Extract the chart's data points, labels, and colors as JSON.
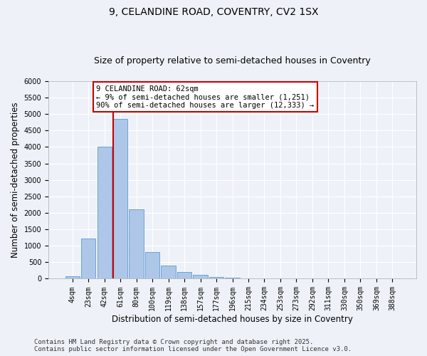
{
  "title_line1": "9, CELANDINE ROAD, COVENTRY, CV2 1SX",
  "title_line2": "Size of property relative to semi-detached houses in Coventry",
  "xlabel": "Distribution of semi-detached houses by size in Coventry",
  "ylabel": "Number of semi-detached properties",
  "categories": [
    "4sqm",
    "23sqm",
    "42sqm",
    "61sqm",
    "80sqm",
    "100sqm",
    "119sqm",
    "138sqm",
    "157sqm",
    "177sqm",
    "196sqm",
    "215sqm",
    "234sqm",
    "253sqm",
    "273sqm",
    "292sqm",
    "311sqm",
    "330sqm",
    "350sqm",
    "369sqm",
    "388sqm"
  ],
  "values": [
    75,
    1220,
    4020,
    4850,
    2100,
    800,
    390,
    195,
    110,
    55,
    30,
    10,
    5,
    0,
    0,
    0,
    0,
    0,
    0,
    0,
    0
  ],
  "bar_color": "#aec6e8",
  "bar_edge_color": "#5b9bd5",
  "highlight_bar_index": 3,
  "highlight_line_color": "#cc0000",
  "annotation_text": "9 CELANDINE ROAD: 62sqm\n← 9% of semi-detached houses are smaller (1,251)\n90% of semi-detached houses are larger (12,333) →",
  "annotation_box_color": "#cc0000",
  "ylim": [
    0,
    6000
  ],
  "yticks": [
    0,
    500,
    1000,
    1500,
    2000,
    2500,
    3000,
    3500,
    4000,
    4500,
    5000,
    5500,
    6000
  ],
  "footnote": "Contains HM Land Registry data © Crown copyright and database right 2025.\nContains public sector information licensed under the Open Government Licence v3.0.",
  "bg_color": "#eef2f8",
  "grid_color": "#ffffff",
  "title_fontsize": 10,
  "subtitle_fontsize": 9,
  "tick_fontsize": 7,
  "label_fontsize": 8.5,
  "footnote_fontsize": 6.5
}
